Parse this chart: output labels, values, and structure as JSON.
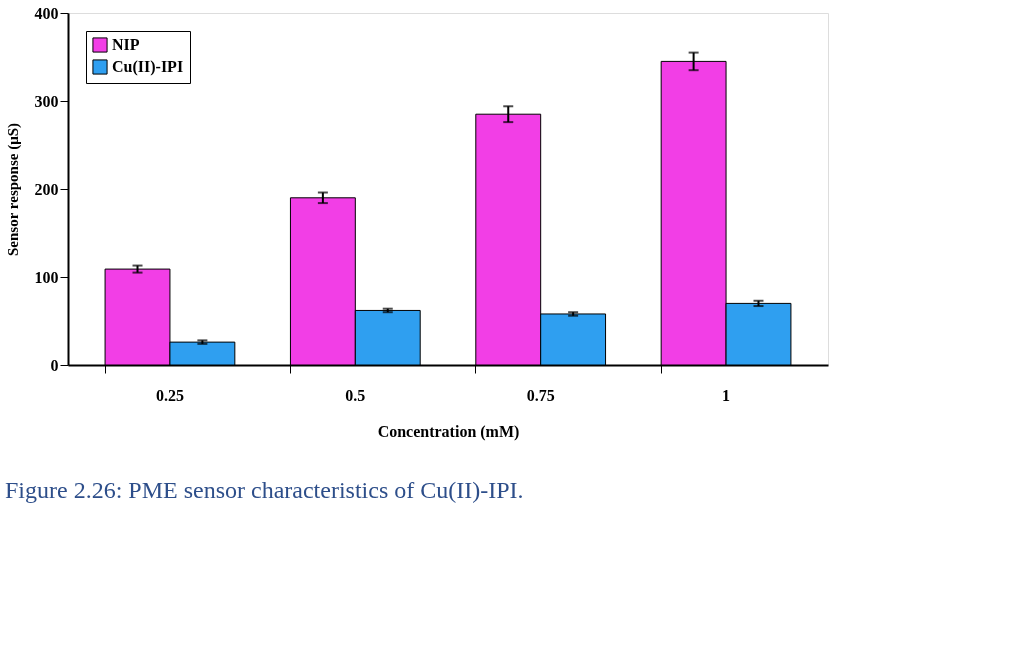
{
  "chart_data": {
    "type": "bar",
    "xlabel": "Concentration (mM)",
    "ylabel": "Sensor response (μS)",
    "categories": [
      "0.25",
      "0.5",
      "0.75",
      "1"
    ],
    "series": [
      {
        "name": "NIP",
        "color": "#f23ee6",
        "values": [
          109,
          190,
          285,
          345
        ],
        "errors": [
          4,
          6,
          9,
          10
        ]
      },
      {
        "name": "Cu(II)-IPI",
        "color": "#2f9ff0",
        "values": [
          26,
          62,
          58,
          70
        ],
        "errors": [
          2,
          2,
          2,
          3
        ]
      }
    ],
    "ylim": [
      0,
      400
    ],
    "yticks": [
      0,
      100,
      200,
      300,
      400
    ],
    "grid": false,
    "legend": "top left",
    "annotations": [
      "Figure 2.26: PME sensor characteristics of Cu(II)-IPI."
    ]
  }
}
